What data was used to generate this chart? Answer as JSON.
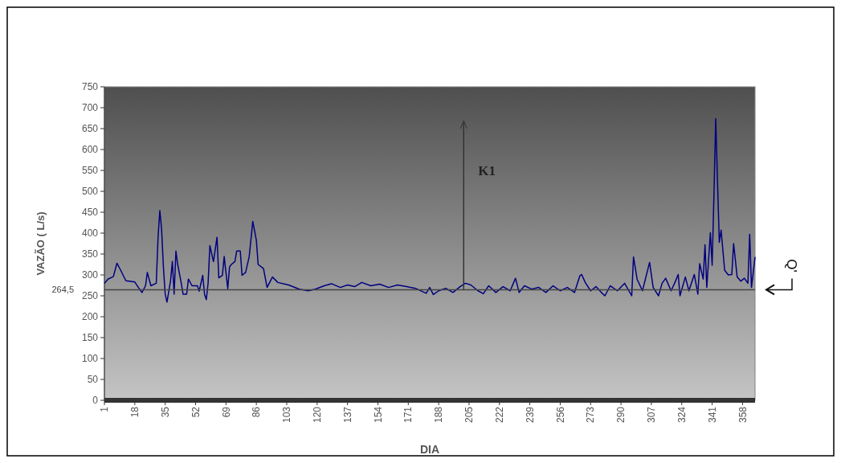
{
  "chart_data": {
    "type": "line",
    "xlabel": "DIA",
    "ylabel": "VAZÃO ( L/s)",
    "x": [
      1,
      3,
      6,
      8,
      10,
      13,
      18,
      20,
      22,
      24,
      25,
      27,
      30,
      31,
      32,
      33,
      34,
      35,
      36,
      38,
      39,
      40,
      41,
      42,
      44,
      45,
      47,
      48,
      50,
      53,
      54,
      56,
      57,
      58,
      59,
      60,
      62,
      64,
      65,
      67,
      68,
      70,
      71,
      72,
      74,
      75,
      77,
      78,
      80,
      82,
      84,
      86,
      87,
      90,
      92,
      95,
      98,
      104,
      110,
      115,
      119,
      124,
      128,
      133,
      137,
      141,
      145,
      150,
      155,
      160,
      165,
      170,
      175,
      181,
      183,
      185,
      188,
      192,
      196,
      200,
      203,
      206,
      210,
      213,
      216,
      220,
      224,
      228,
      231,
      233,
      236,
      240,
      244,
      248,
      252,
      256,
      260,
      264,
      267,
      268,
      270,
      273,
      276,
      279,
      281,
      284,
      288,
      292,
      296,
      297,
      299,
      302,
      306,
      308,
      311,
      313,
      315,
      318,
      320,
      322,
      323,
      326,
      328,
      331,
      333,
      334,
      336,
      337,
      338,
      340,
      341,
      342,
      343,
      344,
      345,
      346,
      348,
      350,
      352,
      353,
      355,
      357,
      359,
      361,
      362,
      363,
      365
    ],
    "series": [
      {
        "color": "#000080",
        "values": [
          280,
          290,
          296,
          328,
          312,
          286,
          283,
          270,
          258,
          274,
          306,
          274,
          280,
          390,
          454,
          409,
          319,
          254,
          235,
          286,
          332,
          254,
          357,
          325,
          280,
          254,
          254,
          290,
          274,
          274,
          261,
          299,
          254,
          241,
          280,
          370,
          332,
          390,
          293,
          299,
          344,
          267,
          319,
          325,
          332,
          357,
          357,
          299,
          306,
          344,
          428,
          383,
          325,
          315,
          270,
          295,
          282,
          276,
          266,
          262,
          266,
          274,
          279,
          270,
          276,
          272,
          282,
          274,
          278,
          270,
          276,
          272,
          268,
          256,
          270,
          253,
          262,
          268,
          258,
          272,
          280,
          276,
          262,
          255,
          274,
          258,
          272,
          262,
          292,
          258,
          274,
          266,
          270,
          258,
          274,
          262,
          270,
          258,
          298,
          301,
          282,
          262,
          272,
          258,
          250,
          274,
          262,
          280,
          250,
          343,
          290,
          262,
          330,
          270,
          250,
          280,
          292,
          262,
          280,
          301,
          250,
          295,
          262,
          301,
          254,
          327,
          290,
          372,
          270,
          401,
          323,
          490,
          674,
          522,
          378,
          407,
          311,
          300,
          301,
          375,
          295,
          285,
          292,
          280,
          397,
          270,
          343
        ]
      }
    ],
    "xlim": [
      1,
      365
    ],
    "xticks": [
      1,
      18,
      35,
      52,
      69,
      86,
      103,
      120,
      137,
      154,
      171,
      188,
      205,
      222,
      239,
      256,
      273,
      290,
      307,
      324,
      341,
      358
    ],
    "ylim": [
      0,
      750
    ],
    "yticks": [
      0,
      50,
      100,
      150,
      200,
      250,
      300,
      350,
      400,
      450,
      500,
      550,
      600,
      650,
      700,
      750
    ],
    "ref_lines": [
      {
        "axis": "y",
        "value": 264.5,
        "label": "264,5"
      }
    ],
    "annotations": [
      "K1",
      "Q'"
    ],
    "grid": false,
    "marker": "none",
    "line_style": "solid"
  }
}
